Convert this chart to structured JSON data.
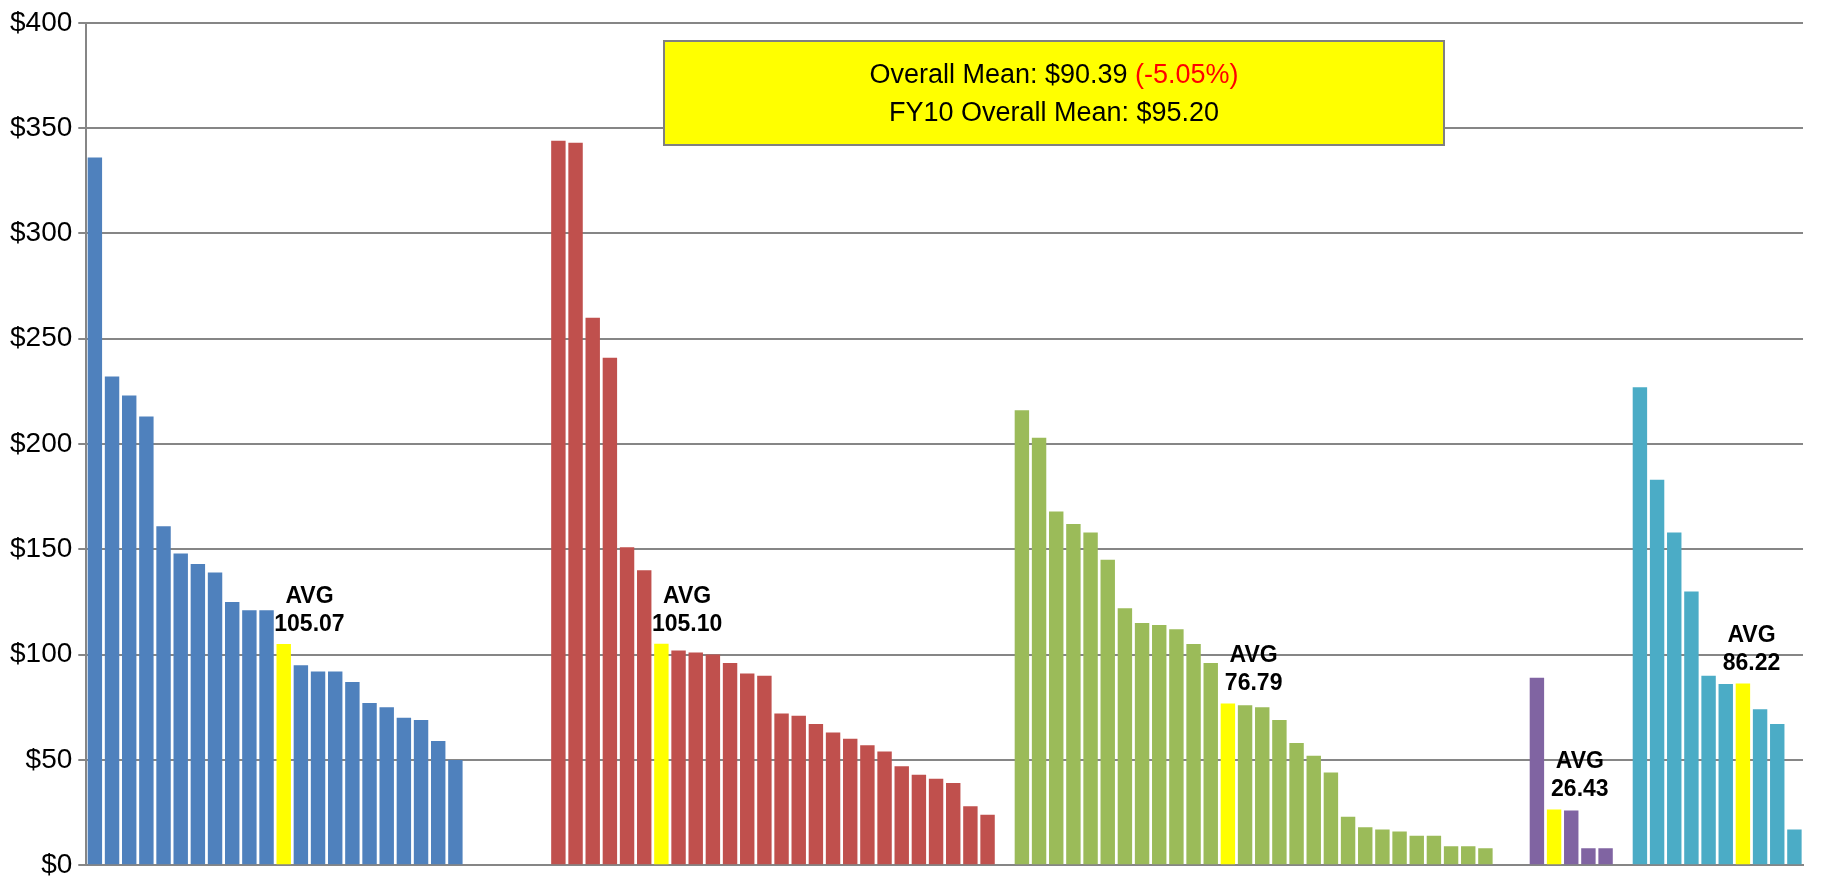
{
  "chart_data": {
    "type": "bar",
    "categories": [
      null,
      null,
      null,
      null,
      null,
      null,
      null,
      null,
      null,
      null,
      null,
      null,
      null,
      null,
      null,
      null,
      null,
      null,
      null,
      null,
      null,
      null,
      null,
      null,
      null,
      null,
      null,
      null,
      null,
      null,
      null,
      null,
      null,
      null,
      null,
      null,
      null,
      null,
      null,
      null,
      null,
      null,
      null,
      null,
      null,
      null,
      null,
      null,
      null,
      null,
      null,
      null,
      null,
      null,
      null,
      null,
      null,
      null,
      null,
      null,
      null,
      null,
      null,
      null,
      null,
      null,
      null,
      null,
      null,
      null,
      null,
      null,
      null,
      null,
      null,
      null,
      null,
      null,
      null,
      null,
      null,
      null,
      null,
      null,
      null,
      null,
      null,
      null,
      null,
      null,
      null,
      null,
      null,
      null,
      null,
      null,
      null,
      null,
      null,
      null
    ],
    "values": [
      336,
      232,
      223,
      213,
      161,
      148,
      143,
      139,
      125,
      121,
      121,
      105.07,
      95,
      92,
      92,
      87,
      77,
      75,
      70,
      69,
      59,
      50,
      null,
      null,
      null,
      null,
      null,
      344,
      343,
      260,
      241,
      151,
      140,
      105.1,
      102,
      101,
      100,
      96,
      91,
      90,
      72,
      71,
      67,
      63,
      60,
      57,
      54,
      47,
      43,
      41,
      39,
      28,
      24,
      null,
      216,
      203,
      168,
      162,
      158,
      145,
      122,
      115,
      114,
      112,
      105,
      96,
      76.79,
      76,
      75,
      69,
      58,
      52,
      44,
      23,
      18,
      17,
      16,
      14,
      14,
      9,
      9,
      8,
      null,
      null,
      89,
      26.43,
      26,
      8,
      8,
      null,
      227,
      183,
      158,
      130,
      90,
      86,
      86.22,
      74,
      67,
      17
    ],
    "colors": [
      "#4f81bd",
      "#4f81bd",
      "#4f81bd",
      "#4f81bd",
      "#4f81bd",
      "#4f81bd",
      "#4f81bd",
      "#4f81bd",
      "#4f81bd",
      "#4f81bd",
      "#4f81bd",
      "#ffff00",
      "#4f81bd",
      "#4f81bd",
      "#4f81bd",
      "#4f81bd",
      "#4f81bd",
      "#4f81bd",
      "#4f81bd",
      "#4f81bd",
      "#4f81bd",
      "#4f81bd",
      null,
      null,
      null,
      null,
      null,
      "#c0504d",
      "#c0504d",
      "#c0504d",
      "#c0504d",
      "#c0504d",
      "#c0504d",
      "#ffff00",
      "#c0504d",
      "#c0504d",
      "#c0504d",
      "#c0504d",
      "#c0504d",
      "#c0504d",
      "#c0504d",
      "#c0504d",
      "#c0504d",
      "#c0504d",
      "#c0504d",
      "#c0504d",
      "#c0504d",
      "#c0504d",
      "#c0504d",
      "#c0504d",
      "#c0504d",
      "#c0504d",
      "#c0504d",
      null,
      "#9bbb59",
      "#9bbb59",
      "#9bbb59",
      "#9bbb59",
      "#9bbb59",
      "#9bbb59",
      "#9bbb59",
      "#9bbb59",
      "#9bbb59",
      "#9bbb59",
      "#9bbb59",
      "#9bbb59",
      "#ffff00",
      "#9bbb59",
      "#9bbb59",
      "#9bbb59",
      "#9bbb59",
      "#9bbb59",
      "#9bbb59",
      "#9bbb59",
      "#9bbb59",
      "#9bbb59",
      "#9bbb59",
      "#9bbb59",
      "#9bbb59",
      "#9bbb59",
      "#9bbb59",
      "#9bbb59",
      null,
      null,
      "#8064a2",
      "#ffff00",
      "#8064a2",
      "#8064a2",
      "#8064a2",
      null,
      "#4bacc6",
      "#4bacc6",
      "#4bacc6",
      "#4bacc6",
      "#4bacc6",
      "#4bacc6",
      "#ffff00",
      "#4bacc6",
      "#4bacc6",
      "#4bacc6"
    ],
    "value_labels": [
      null,
      null,
      null,
      null,
      null,
      null,
      null,
      null,
      null,
      null,
      null,
      "AVG\n105.07",
      null,
      null,
      null,
      null,
      null,
      null,
      null,
      null,
      null,
      null,
      null,
      null,
      null,
      null,
      null,
      null,
      null,
      null,
      null,
      null,
      null,
      "AVG\n105.10",
      null,
      null,
      null,
      null,
      null,
      null,
      null,
      null,
      null,
      null,
      null,
      null,
      null,
      null,
      null,
      null,
      null,
      null,
      null,
      null,
      null,
      null,
      null,
      null,
      null,
      null,
      null,
      null,
      null,
      null,
      null,
      null,
      "AVG\n76.79",
      null,
      null,
      null,
      null,
      null,
      null,
      null,
      null,
      null,
      null,
      null,
      null,
      null,
      null,
      null,
      null,
      null,
      null,
      "AVG\n26.43",
      null,
      null,
      null,
      null,
      null,
      null,
      null,
      null,
      null,
      null,
      "AVG\n86.22",
      null,
      null,
      null
    ],
    "ylim": [
      0,
      400
    ],
    "yticks": [
      {
        "value": 0,
        "label": "$0"
      },
      {
        "value": 50,
        "label": "$50"
      },
      {
        "value": 100,
        "label": "$100"
      },
      {
        "value": 150,
        "label": "$150"
      },
      {
        "value": 200,
        "label": "$200"
      },
      {
        "value": 250,
        "label": "$250"
      },
      {
        "value": 300,
        "label": "$300"
      },
      {
        "value": 350,
        "label": "$350"
      },
      {
        "value": 400,
        "label": "$400"
      }
    ],
    "grid": "y",
    "tick_labels": "y",
    "legend": false,
    "annotations": [
      "Overall Mean: $90.39",
      "(-5.05%)",
      "FY10 Overall Mean: $95.20"
    ]
  }
}
